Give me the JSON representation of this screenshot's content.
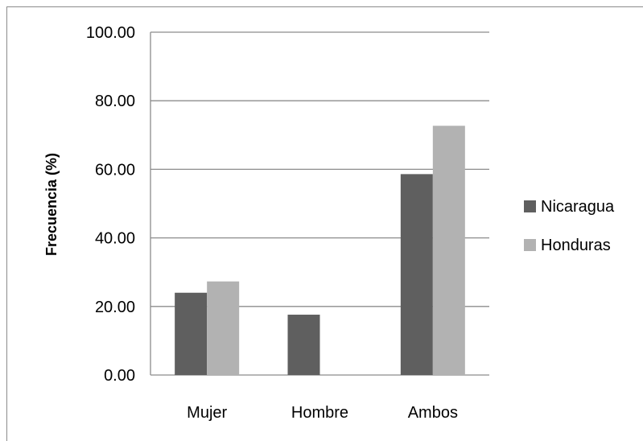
{
  "chart_data": {
    "type": "bar",
    "categories": [
      "Mujer",
      "Hombre",
      "Ambos"
    ],
    "series": [
      {
        "name": "Nicaragua",
        "values": [
          24.0,
          17.6,
          58.6
        ],
        "color": "#5f5f5f"
      },
      {
        "name": "Honduras",
        "values": [
          27.3,
          0.0,
          72.7
        ],
        "color": "#b2b2b2"
      }
    ],
    "ylabel": "Frecuencia (%)",
    "xlabel": "",
    "ylim": [
      0,
      100
    ],
    "yticks": [
      "0.00",
      "20.00",
      "40.00",
      "60.00",
      "80.00",
      "100.00"
    ],
    "grid": true,
    "legend_position": "right",
    "colors": {
      "gridline": "#8c8c8c",
      "axis": "#8c8c8c"
    }
  }
}
